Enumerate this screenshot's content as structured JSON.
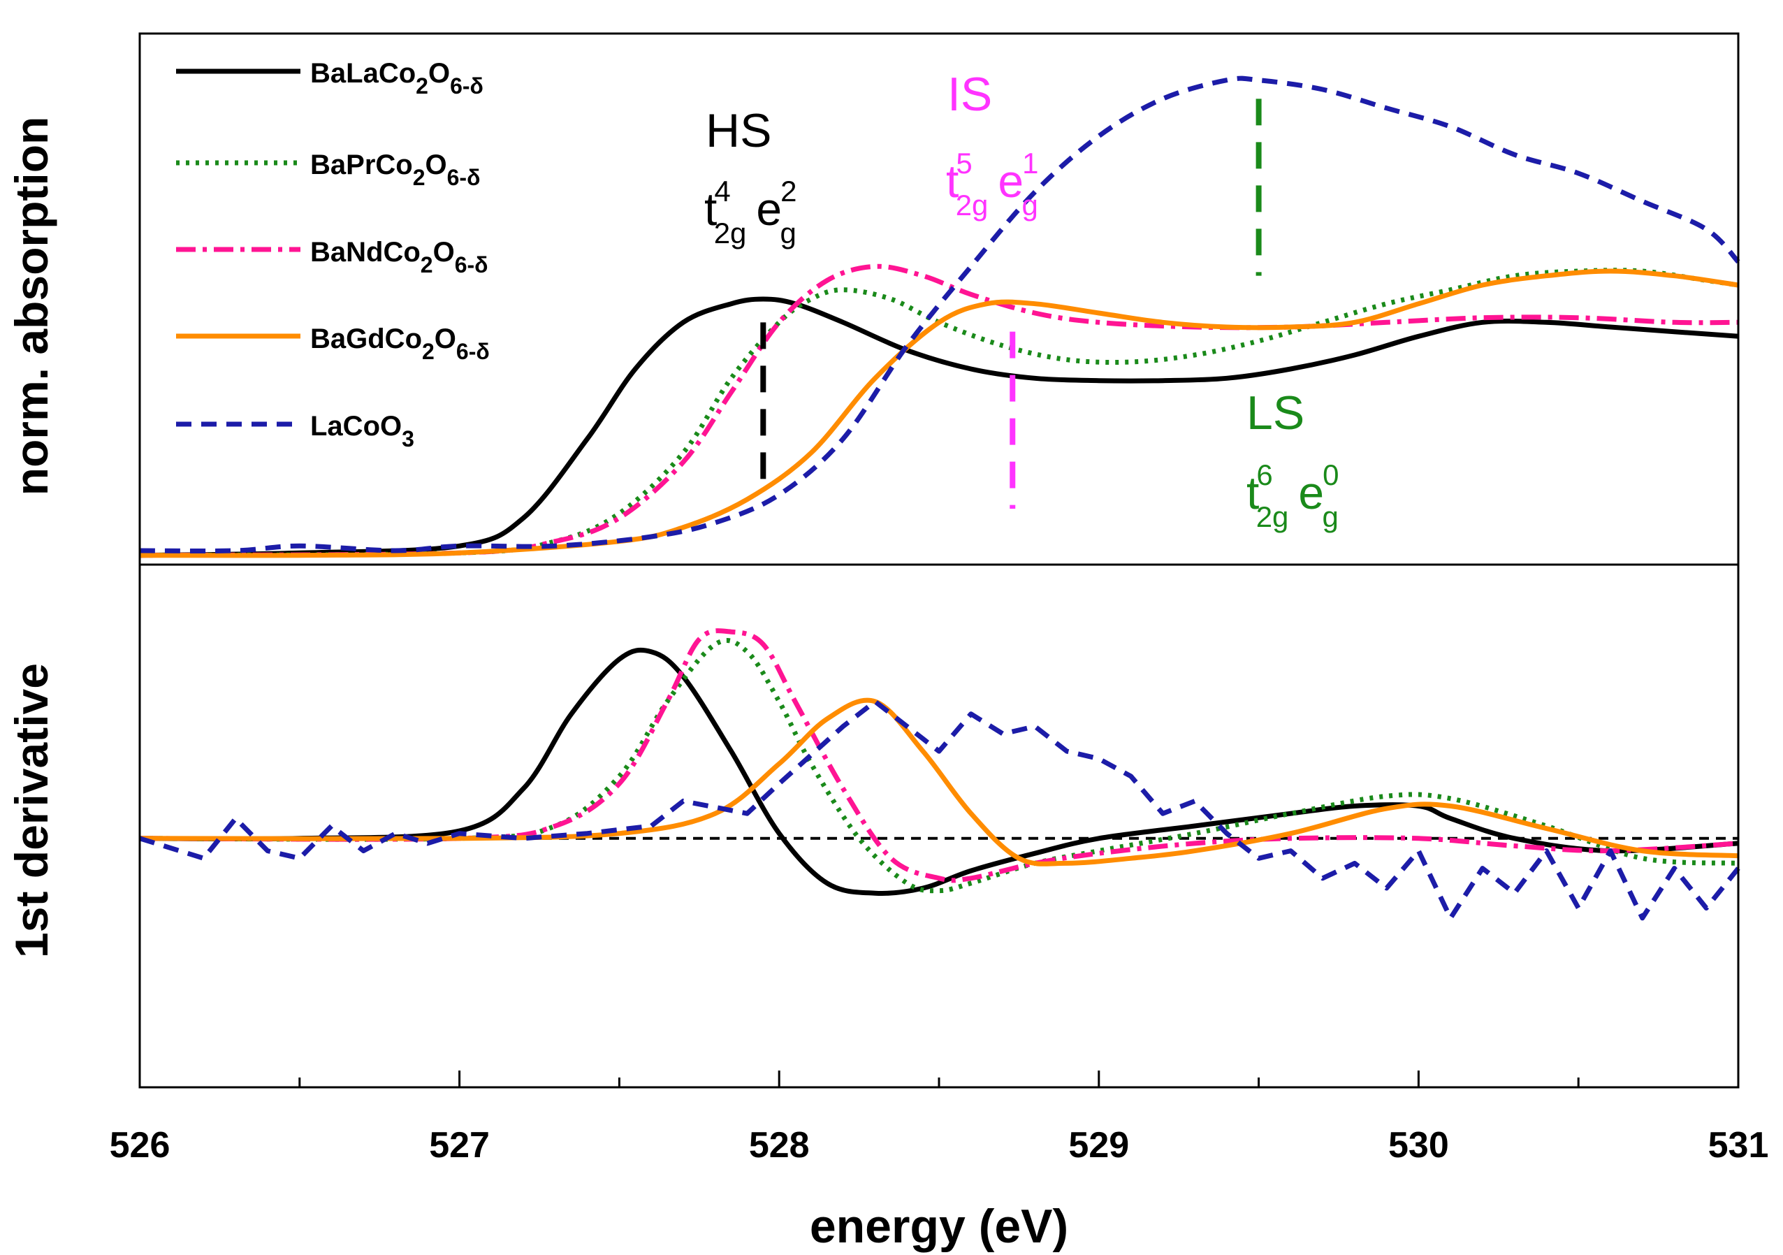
{
  "colors": {
    "balaco": "#000000",
    "baprco": "#1a8a1a",
    "bandco": "#ff1493",
    "bagdco": "#ff8c00",
    "lacoo3": "#1c1ca8",
    "hs": "#000000",
    "is": "#ff33ff",
    "ls": "#1a8a1a"
  },
  "chart_data": [
    {
      "type": "line",
      "panel": "top",
      "xlabel": "energy (eV)",
      "ylabel": "norm. absorption",
      "xlim": [
        526,
        531
      ],
      "ylim": [
        -0.02,
        1.12
      ],
      "x_ticks": [
        "526",
        "527",
        "528",
        "529",
        "530",
        "531"
      ],
      "legend_position": "top-left",
      "series": [
        {
          "name": "BaLaCo2O6-δ",
          "style": "solid",
          "x": [
            526,
            526.5,
            527,
            527.2,
            527.4,
            527.55,
            527.7,
            527.85,
            527.95,
            528.05,
            528.2,
            528.4,
            528.6,
            528.8,
            529,
            529.2,
            529.4,
            529.6,
            529.8,
            530,
            530.2,
            530.4,
            530.6,
            530.8,
            531
          ],
          "y": [
            0.0,
            0.005,
            0.02,
            0.08,
            0.25,
            0.4,
            0.5,
            0.54,
            0.55,
            0.54,
            0.5,
            0.44,
            0.4,
            0.38,
            0.375,
            0.375,
            0.38,
            0.4,
            0.43,
            0.47,
            0.5,
            0.5,
            0.49,
            0.48,
            0.47
          ]
        },
        {
          "name": "BaPrCo2O6-δ",
          "style": "dotted",
          "x": [
            526,
            527,
            527.3,
            527.5,
            527.7,
            527.85,
            528,
            528.1,
            528.2,
            528.35,
            528.5,
            528.7,
            528.9,
            529.1,
            529.3,
            529.5,
            529.7,
            529.9,
            530.1,
            530.3,
            530.5,
            530.7,
            530.9,
            531
          ],
          "y": [
            0.0,
            0.005,
            0.03,
            0.09,
            0.22,
            0.38,
            0.5,
            0.55,
            0.57,
            0.55,
            0.5,
            0.45,
            0.42,
            0.415,
            0.43,
            0.46,
            0.5,
            0.54,
            0.57,
            0.6,
            0.61,
            0.61,
            0.59,
            0.58
          ]
        },
        {
          "name": "BaNdCo2O6-δ",
          "style": "dashdot",
          "x": [
            526,
            527,
            527.3,
            527.5,
            527.7,
            527.85,
            528,
            528.15,
            528.3,
            528.45,
            528.6,
            528.8,
            529,
            529.3,
            529.6,
            529.9,
            530.2,
            530.5,
            530.8,
            531
          ],
          "y": [
            0.0,
            0.005,
            0.03,
            0.08,
            0.2,
            0.35,
            0.5,
            0.59,
            0.62,
            0.6,
            0.56,
            0.52,
            0.5,
            0.49,
            0.49,
            0.5,
            0.51,
            0.51,
            0.5,
            0.5
          ]
        },
        {
          "name": "BaGdCo2O6-δ",
          "style": "solid",
          "x": [
            526,
            526.5,
            527,
            527.5,
            527.7,
            527.9,
            528.1,
            528.3,
            528.5,
            528.65,
            528.8,
            529,
            529.2,
            529.4,
            529.6,
            529.8,
            530,
            530.2,
            530.4,
            530.6,
            530.8,
            531
          ],
          "y": [
            0.0,
            0.0,
            0.005,
            0.03,
            0.06,
            0.12,
            0.22,
            0.38,
            0.5,
            0.54,
            0.54,
            0.52,
            0.5,
            0.49,
            0.49,
            0.5,
            0.54,
            0.58,
            0.6,
            0.61,
            0.6,
            0.58
          ]
        },
        {
          "name": "LaCoO3",
          "style": "dashed",
          "x": [
            526,
            526.3,
            526.5,
            526.8,
            527,
            527.3,
            527.6,
            527.8,
            528,
            528.2,
            528.4,
            528.6,
            528.8,
            529,
            529.2,
            529.4,
            529.5,
            529.7,
            529.9,
            530.1,
            530.3,
            530.5,
            530.7,
            530.9,
            531
          ],
          "y": [
            0.01,
            0.01,
            0.02,
            0.01,
            0.02,
            0.02,
            0.04,
            0.07,
            0.13,
            0.25,
            0.45,
            0.62,
            0.78,
            0.9,
            0.98,
            1.02,
            1.02,
            1.0,
            0.96,
            0.92,
            0.86,
            0.82,
            0.76,
            0.7,
            0.63
          ]
        }
      ],
      "annotations": [
        {
          "label": "HS",
          "sup_t": "4",
          "sub_t": "2g",
          "sup_e": "2",
          "sub_e": "g",
          "marker_x": 527.95
        },
        {
          "label": "IS",
          "sup_t": "5",
          "sub_t": "2g",
          "sup_e": "1",
          "sub_e": "g",
          "marker_x": 528.73
        },
        {
          "label": "LS",
          "sup_t": "6",
          "sub_t": "2g",
          "sup_e": "0",
          "sub_e": "g",
          "marker_x": 529.5
        }
      ]
    },
    {
      "type": "line",
      "panel": "bottom",
      "xlabel": "energy (eV)",
      "ylabel": "1st derivative",
      "xlim": [
        526,
        531
      ],
      "ylim": [
        -1.0,
        1.1
      ],
      "x_ticks": [
        "526",
        "527",
        "528",
        "529",
        "530",
        "531"
      ],
      "zero_line": true,
      "series": [
        {
          "name": "BaLaCo2O6-δ",
          "x": [
            526,
            526.5,
            527,
            527.2,
            527.35,
            527.5,
            527.6,
            527.7,
            527.85,
            528,
            528.15,
            528.3,
            528.45,
            528.6,
            528.8,
            529,
            529.3,
            529.6,
            529.8,
            530,
            530.1,
            530.3,
            530.6,
            531
          ],
          "y": [
            0.0,
            0.0,
            0.03,
            0.2,
            0.5,
            0.72,
            0.75,
            0.65,
            0.35,
            0.02,
            -0.18,
            -0.22,
            -0.2,
            -0.13,
            -0.06,
            0.0,
            0.05,
            0.1,
            0.13,
            0.13,
            0.08,
            0.0,
            -0.05,
            -0.02
          ]
        },
        {
          "name": "BaPrCo2O6-δ",
          "x": [
            526,
            527,
            527.3,
            527.5,
            527.65,
            527.8,
            527.9,
            528,
            528.1,
            528.25,
            528.4,
            528.5,
            528.6,
            528.8,
            529,
            529.3,
            529.6,
            529.9,
            530.1,
            530.4,
            530.7,
            531
          ],
          "y": [
            0.0,
            0.0,
            0.05,
            0.25,
            0.55,
            0.78,
            0.75,
            0.55,
            0.3,
            0.0,
            -0.18,
            -0.21,
            -0.18,
            -0.1,
            -0.05,
            0.02,
            0.1,
            0.17,
            0.16,
            0.05,
            -0.08,
            -0.1
          ]
        },
        {
          "name": "BaNdCo2O6-δ",
          "x": [
            526,
            527,
            527.3,
            527.5,
            527.65,
            527.75,
            527.85,
            527.95,
            528.05,
            528.2,
            528.35,
            528.5,
            528.6,
            528.8,
            529,
            529.3,
            529.6,
            530,
            530.3,
            530.6,
            531
          ],
          "y": [
            0.0,
            0.0,
            0.05,
            0.22,
            0.55,
            0.8,
            0.83,
            0.78,
            0.55,
            0.2,
            -0.08,
            -0.16,
            -0.16,
            -0.1,
            -0.06,
            -0.02,
            0.0,
            0.0,
            -0.03,
            -0.05,
            -0.02
          ]
        },
        {
          "name": "BaGdCo2O6-δ",
          "x": [
            526,
            527,
            527.5,
            527.8,
            528,
            528.15,
            528.3,
            528.45,
            528.6,
            528.75,
            528.9,
            529.1,
            529.3,
            529.6,
            529.9,
            530.1,
            530.4,
            530.7,
            531
          ],
          "y": [
            0.0,
            0.0,
            0.02,
            0.1,
            0.3,
            0.48,
            0.55,
            0.35,
            0.1,
            -0.08,
            -0.1,
            -0.08,
            -0.05,
            0.02,
            0.12,
            0.13,
            0.04,
            -0.05,
            -0.07
          ]
        },
        {
          "name": "LaCoO3",
          "x": [
            526,
            526.2,
            526.3,
            526.4,
            526.5,
            526.6,
            526.7,
            526.8,
            526.9,
            527,
            527.2,
            527.4,
            527.6,
            527.7,
            527.9,
            528,
            528.2,
            528.3,
            528.45,
            528.5,
            528.6,
            528.7,
            528.8,
            528.9,
            529,
            529.1,
            529.2,
            529.3,
            529.4,
            529.5,
            529.6,
            529.7,
            529.8,
            529.9,
            530,
            530.1,
            530.2,
            530.3,
            530.4,
            530.5,
            530.6,
            530.7,
            530.8,
            530.9,
            531
          ],
          "y": [
            0.0,
            -0.08,
            0.08,
            -0.05,
            -0.08,
            0.05,
            -0.05,
            0.02,
            -0.02,
            0.02,
            0.0,
            0.02,
            0.05,
            0.15,
            0.1,
            0.22,
            0.45,
            0.55,
            0.4,
            0.35,
            0.5,
            0.42,
            0.45,
            0.35,
            0.32,
            0.25,
            0.1,
            0.15,
            0.02,
            -0.08,
            -0.05,
            -0.16,
            -0.1,
            -0.2,
            -0.05,
            -0.32,
            -0.12,
            -0.22,
            -0.05,
            -0.28,
            -0.05,
            -0.32,
            -0.12,
            -0.28,
            -0.12
          ]
        }
      ]
    }
  ]
}
